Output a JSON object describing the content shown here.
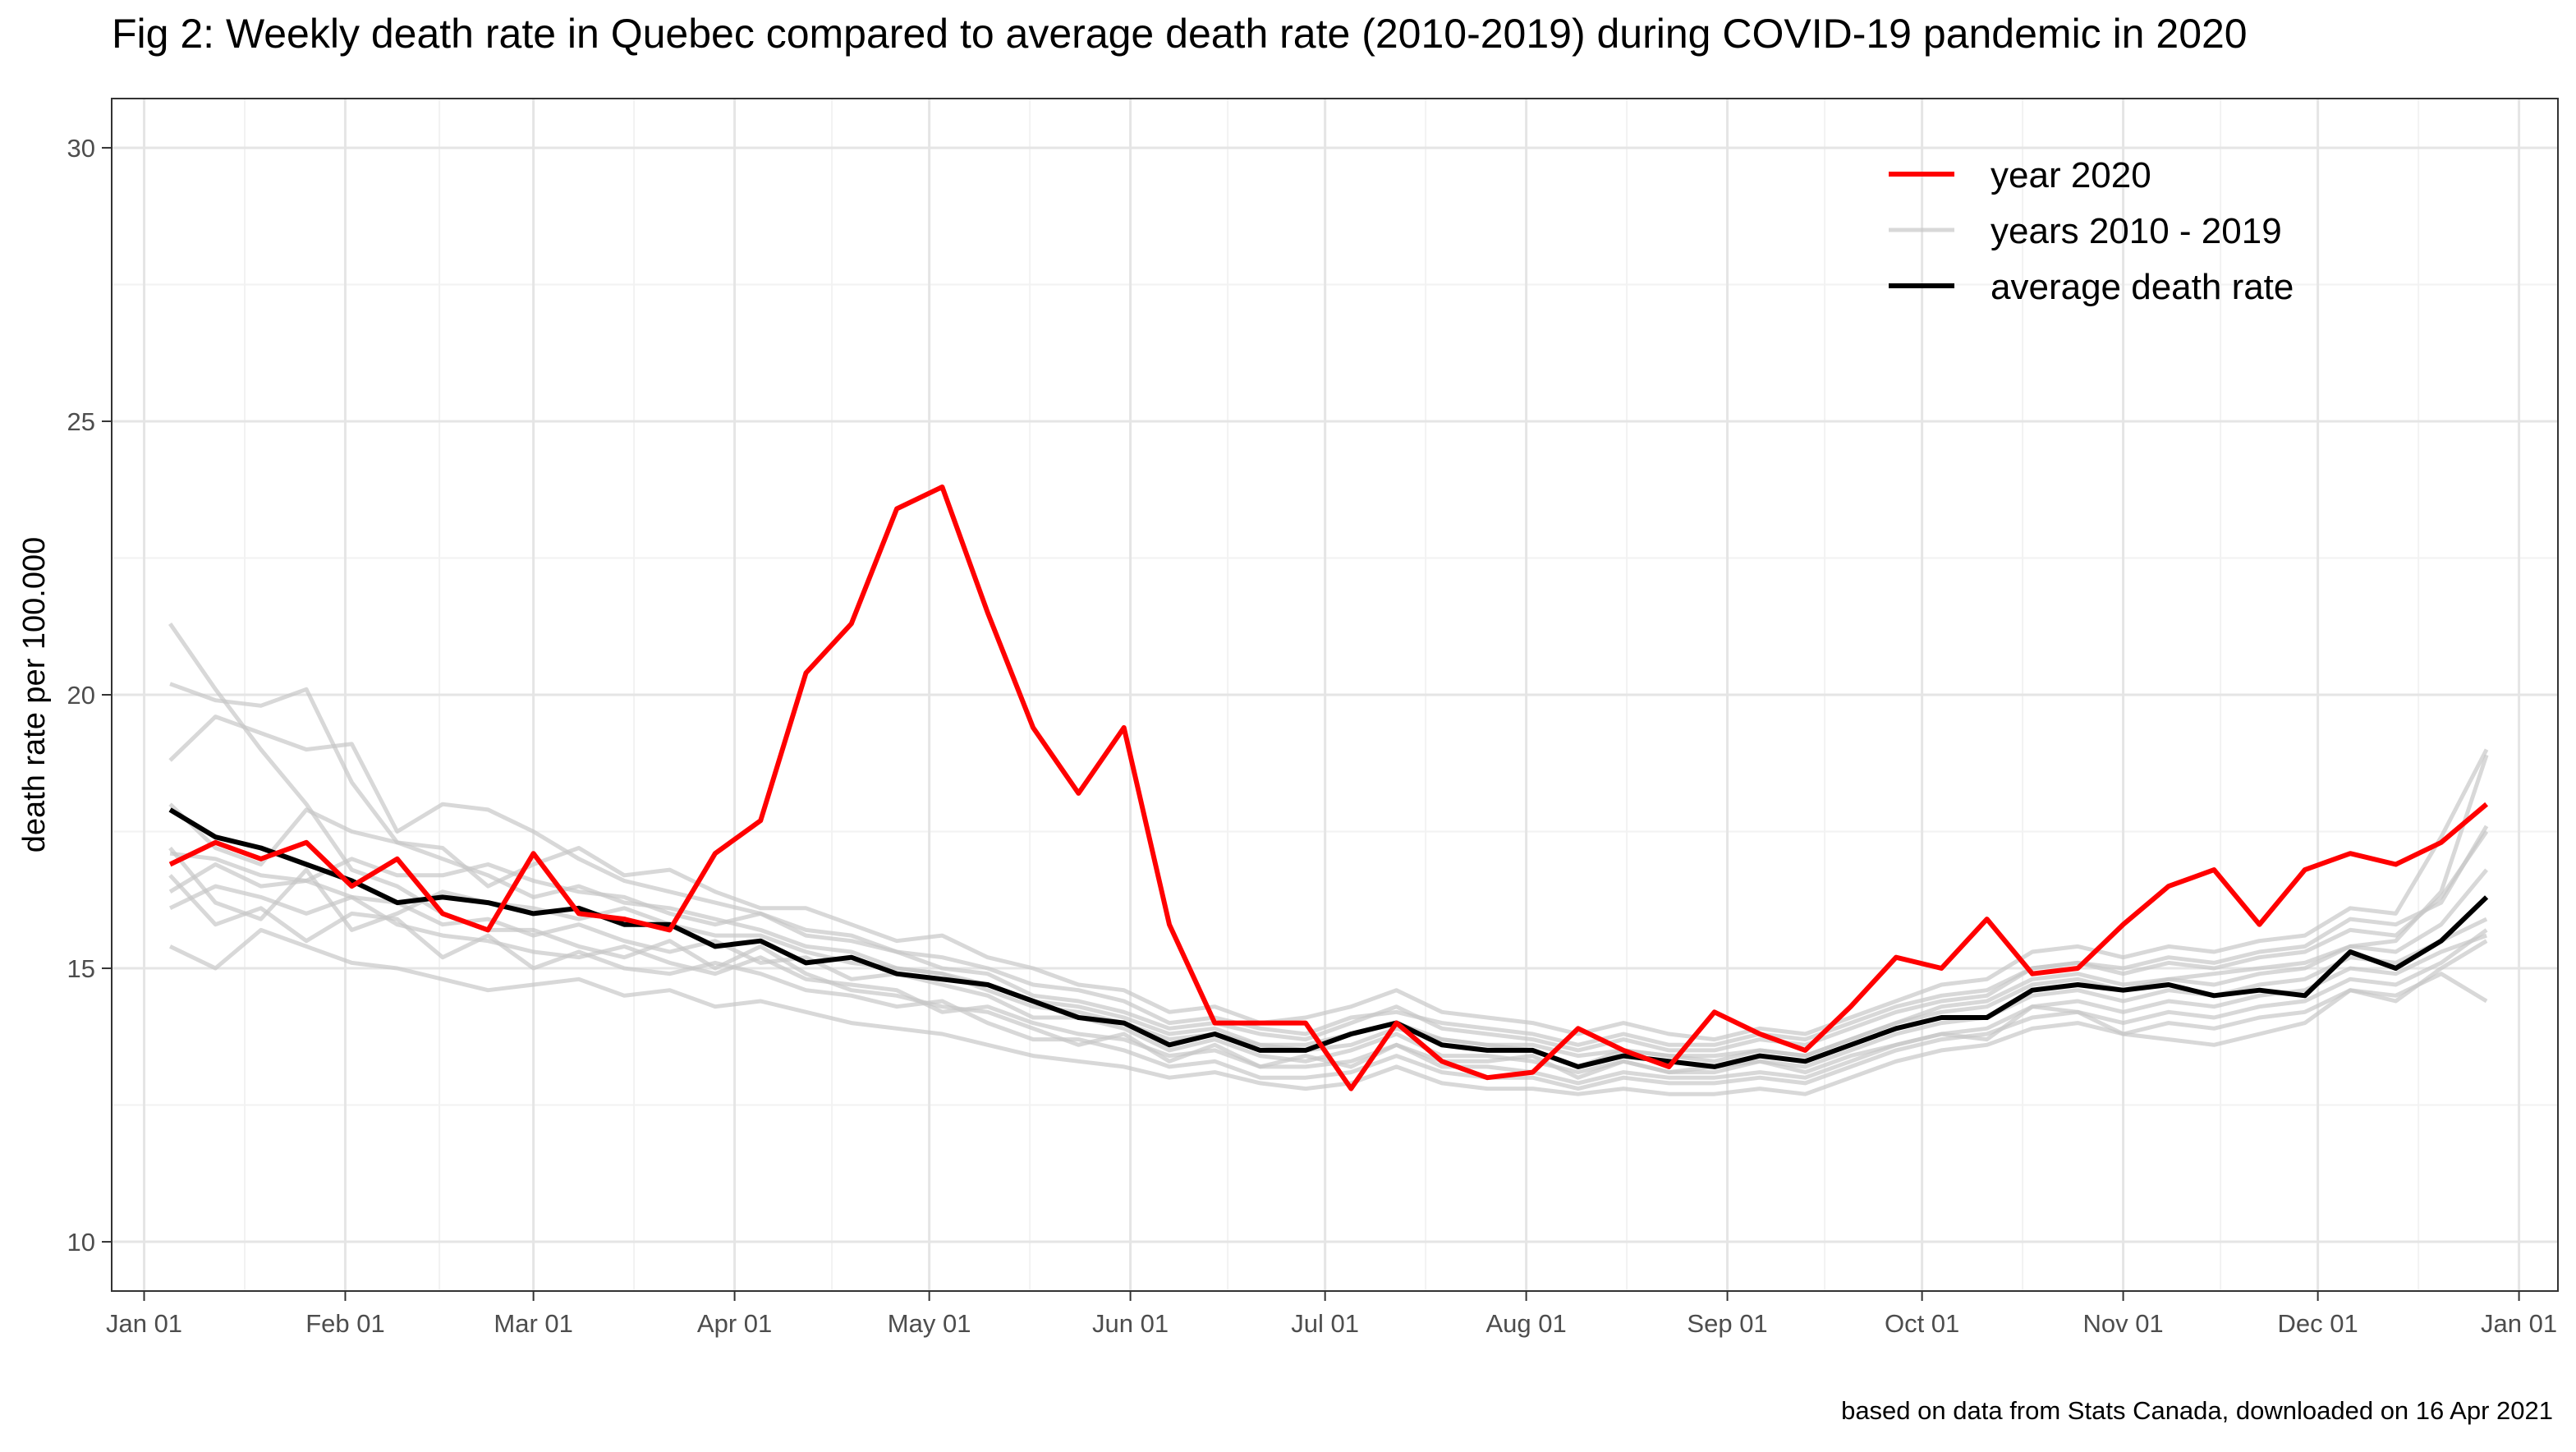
{
  "title": "Fig 2: Weekly death rate in Quebec compared to average death rate (2010-2019) during COVID-19 pandemic in 2020",
  "caption": "based on data from Stats Canada, downloaded on 16 Apr 2021",
  "colors": {
    "year_2020": "#ff0000",
    "years_2010_2019": "#c8c8c8",
    "average": "#000000",
    "grid_major": "#e5e5e5",
    "grid_minor": "#f2f2f2",
    "panel_border": "#333333",
    "tick_text": "#4d4d4d"
  },
  "chart_data": {
    "type": "line",
    "title": "Fig 2: Weekly death rate in Quebec compared to average death rate (2010-2019) during COVID-19 pandemic in 2020",
    "xlabel": "",
    "ylabel": "death rate per 100.000",
    "ylim": [
      9.1,
      30.9
    ],
    "xlim": [
      "2019-12-27",
      "2021-01-07"
    ],
    "grid": true,
    "legend_position": "top-right",
    "x_ticks": [
      {
        "date": "2020-01-01",
        "label": "Jan 01"
      },
      {
        "date": "2020-02-01",
        "label": "Feb 01"
      },
      {
        "date": "2020-03-01",
        "label": "Mar 01"
      },
      {
        "date": "2020-04-01",
        "label": "Apr 01"
      },
      {
        "date": "2020-05-01",
        "label": "May 01"
      },
      {
        "date": "2020-06-01",
        "label": "Jun 01"
      },
      {
        "date": "2020-07-01",
        "label": "Jul 01"
      },
      {
        "date": "2020-08-01",
        "label": "Aug 01"
      },
      {
        "date": "2020-09-01",
        "label": "Sep 01"
      },
      {
        "date": "2020-10-01",
        "label": "Oct 01"
      },
      {
        "date": "2020-11-01",
        "label": "Nov 01"
      },
      {
        "date": "2020-12-01",
        "label": "Dec 01"
      },
      {
        "date": "2021-01-01",
        "label": "Jan 01"
      }
    ],
    "y_ticks": [
      {
        "value": 10,
        "label": "10"
      },
      {
        "value": 15,
        "label": "15"
      },
      {
        "value": 20,
        "label": "20"
      },
      {
        "value": 25,
        "label": "25"
      },
      {
        "value": 30,
        "label": "30"
      }
    ],
    "x": [
      "2020-01-05",
      "2020-01-12",
      "2020-01-19",
      "2020-01-26",
      "2020-02-02",
      "2020-02-09",
      "2020-02-16",
      "2020-02-23",
      "2020-03-01",
      "2020-03-08",
      "2020-03-15",
      "2020-03-22",
      "2020-03-29",
      "2020-04-05",
      "2020-04-12",
      "2020-04-19",
      "2020-04-26",
      "2020-05-03",
      "2020-05-10",
      "2020-05-17",
      "2020-05-24",
      "2020-05-31",
      "2020-06-07",
      "2020-06-14",
      "2020-06-21",
      "2020-06-28",
      "2020-07-05",
      "2020-07-12",
      "2020-07-19",
      "2020-07-26",
      "2020-08-02",
      "2020-08-09",
      "2020-08-16",
      "2020-08-23",
      "2020-08-30",
      "2020-09-06",
      "2020-09-13",
      "2020-09-20",
      "2020-09-27",
      "2020-10-04",
      "2020-10-11",
      "2020-10-18",
      "2020-10-25",
      "2020-11-01",
      "2020-11-08",
      "2020-11-15",
      "2020-11-22",
      "2020-11-29",
      "2020-12-06",
      "2020-12-13",
      "2020-12-20",
      "2020-12-27"
    ],
    "legend": [
      {
        "label": "year 2020",
        "color": "#ff0000"
      },
      {
        "label": "years 2010 - 2019",
        "color": "#c8c8c8"
      },
      {
        "label": "average death rate",
        "color": "#000000"
      }
    ],
    "series": [
      {
        "name": "year 2020",
        "color": "#ff0000",
        "values": [
          16.9,
          17.3,
          17.0,
          17.3,
          16.5,
          17.0,
          16.0,
          15.7,
          17.1,
          16.0,
          15.9,
          15.7,
          17.1,
          17.7,
          20.4,
          21.3,
          23.4,
          23.8,
          21.5,
          19.4,
          18.2,
          19.4,
          15.8,
          14.0,
          14.0,
          14.0,
          12.8,
          14.0,
          13.3,
          13.0,
          13.1,
          13.9,
          13.5,
          13.2,
          14.2,
          13.8,
          13.5,
          14.3,
          15.2,
          15.0,
          15.9,
          14.9,
          15.0,
          15.8,
          16.5,
          16.8,
          15.8,
          16.8,
          17.1,
          16.9,
          17.3,
          18.0
        ]
      },
      {
        "name": "average death rate",
        "color": "#000000",
        "values": [
          17.9,
          17.4,
          17.2,
          16.9,
          16.6,
          16.2,
          16.3,
          16.2,
          16.0,
          16.1,
          15.8,
          15.8,
          15.4,
          15.5,
          15.1,
          15.2,
          14.9,
          14.8,
          14.7,
          14.4,
          14.1,
          14.0,
          13.6,
          13.8,
          13.5,
          13.5,
          13.8,
          14.0,
          13.6,
          13.5,
          13.5,
          13.2,
          13.4,
          13.3,
          13.2,
          13.4,
          13.3,
          13.6,
          13.9,
          14.1,
          14.1,
          14.6,
          14.7,
          14.6,
          14.7,
          14.5,
          14.6,
          14.5,
          15.3,
          15.0,
          15.5,
          16.3
        ]
      },
      {
        "name": "",
        "color": "#c8c8c8",
        "values": [
          21.3,
          20.1,
          19.0,
          18.0,
          16.8,
          16.5,
          16.0,
          15.7,
          15.7,
          15.4,
          15.2,
          15.5,
          15.0,
          15.4,
          14.9,
          14.6,
          14.5,
          14.3,
          14.2,
          13.9,
          13.6,
          13.8,
          13.3,
          13.6,
          13.2,
          13.4,
          13.2,
          13.6,
          13.3,
          13.3,
          13.4,
          13.0,
          13.3,
          13.1,
          13.2,
          13.3,
          13.1,
          13.4,
          13.6,
          13.8,
          13.7,
          14.3,
          14.2,
          13.8,
          13.7,
          13.6,
          13.8,
          14.0,
          14.6,
          14.4,
          15.0,
          15.5
        ]
      },
      {
        "name": "",
        "color": "#c8c8c8",
        "values": [
          20.2,
          19.9,
          19.8,
          20.1,
          18.4,
          17.3,
          17.0,
          16.7,
          16.3,
          16.5,
          16.2,
          16.1,
          15.9,
          15.7,
          15.4,
          15.3,
          15.0,
          14.9,
          14.6,
          14.3,
          14.2,
          14.0,
          13.7,
          13.8,
          13.6,
          13.5,
          13.6,
          13.9,
          13.7,
          13.6,
          13.5,
          13.2,
          13.5,
          13.4,
          13.3,
          13.5,
          13.4,
          13.7,
          14.0,
          14.3,
          14.4,
          14.8,
          14.9,
          14.7,
          14.8,
          14.9,
          15.0,
          15.1,
          15.4,
          15.5,
          16.4,
          18.9
        ]
      },
      {
        "name": "",
        "color": "#c8c8c8",
        "values": [
          18.8,
          19.6,
          19.3,
          19.0,
          19.1,
          17.5,
          18.0,
          17.9,
          17.5,
          17.0,
          16.6,
          16.4,
          16.2,
          16.0,
          15.6,
          15.5,
          15.3,
          15.0,
          14.9,
          14.5,
          14.4,
          14.2,
          13.9,
          14.0,
          13.8,
          13.7,
          14.0,
          14.3,
          13.9,
          13.8,
          13.7,
          13.5,
          13.7,
          13.5,
          13.5,
          13.7,
          13.6,
          13.9,
          14.2,
          14.4,
          14.5,
          15.0,
          15.1,
          15.0,
          15.2,
          15.1,
          15.3,
          15.4,
          15.9,
          15.8,
          16.2,
          17.6
        ]
      },
      {
        "name": "",
        "color": "#c8c8c8",
        "values": [
          18.0,
          17.2,
          16.9,
          17.9,
          17.5,
          17.3,
          17.2,
          16.5,
          16.9,
          17.2,
          16.7,
          16.8,
          16.4,
          16.1,
          16.1,
          15.8,
          15.5,
          15.6,
          15.2,
          15.0,
          14.7,
          14.6,
          14.2,
          14.3,
          14.0,
          14.1,
          14.3,
          14.6,
          14.2,
          14.1,
          14.0,
          13.8,
          14.0,
          13.8,
          13.7,
          13.9,
          13.8,
          14.1,
          14.4,
          14.7,
          14.8,
          15.3,
          15.4,
          15.2,
          15.4,
          15.3,
          15.5,
          15.6,
          16.1,
          16.0,
          17.4,
          19.0
        ]
      },
      {
        "name": "",
        "color": "#c8c8c8",
        "values": [
          17.1,
          17.0,
          16.7,
          16.6,
          17.0,
          16.7,
          16.7,
          16.9,
          16.6,
          16.4,
          16.3,
          16.0,
          15.8,
          16.0,
          15.7,
          15.6,
          15.3,
          15.2,
          15.0,
          14.7,
          14.6,
          14.4,
          14.0,
          14.1,
          13.9,
          13.8,
          14.1,
          14.2,
          14.0,
          13.9,
          13.8,
          13.6,
          13.8,
          13.6,
          13.6,
          13.8,
          13.7,
          14.0,
          14.3,
          14.5,
          14.6,
          15.0,
          15.1,
          14.9,
          15.1,
          15.0,
          15.2,
          15.3,
          15.7,
          15.6,
          16.3,
          17.5
        ]
      },
      {
        "name": "",
        "color": "#c8c8c8",
        "values": [
          16.4,
          16.9,
          16.5,
          16.6,
          16.3,
          16.2,
          15.8,
          15.9,
          15.6,
          15.8,
          15.5,
          15.3,
          15.5,
          15.1,
          15.2,
          14.8,
          14.9,
          14.7,
          14.5,
          14.1,
          14.1,
          13.9,
          13.5,
          13.7,
          13.4,
          13.3,
          13.5,
          13.8,
          13.4,
          13.4,
          13.3,
          13.1,
          13.3,
          13.1,
          13.1,
          13.3,
          13.2,
          13.5,
          13.8,
          14.0,
          14.1,
          14.5,
          14.6,
          14.4,
          14.6,
          14.5,
          14.7,
          14.8,
          15.2,
          15.1,
          15.5,
          15.9
        ]
      },
      {
        "name": "",
        "color": "#c8c8c8",
        "values": [
          16.1,
          16.5,
          16.3,
          16.0,
          16.3,
          15.8,
          15.6,
          15.5,
          15.3,
          15.2,
          15.4,
          15.1,
          14.9,
          15.2,
          14.8,
          14.7,
          14.6,
          14.2,
          14.3,
          14.0,
          13.8,
          13.7,
          13.4,
          13.5,
          13.2,
          13.2,
          13.3,
          13.6,
          13.2,
          13.2,
          13.1,
          12.9,
          13.1,
          13.0,
          13.0,
          13.1,
          13.0,
          13.3,
          13.6,
          13.8,
          13.9,
          14.3,
          14.4,
          14.2,
          14.4,
          14.3,
          14.5,
          14.6,
          15.0,
          14.9,
          15.3,
          15.6
        ]
      },
      {
        "name": "",
        "color": "#c8c8c8",
        "values": [
          15.4,
          15.0,
          15.7,
          15.4,
          15.1,
          15.0,
          14.8,
          14.6,
          14.7,
          14.8,
          14.5,
          14.6,
          14.3,
          14.4,
          14.2,
          14.0,
          13.9,
          13.8,
          13.6,
          13.4,
          13.3,
          13.2,
          13.0,
          13.1,
          12.9,
          12.8,
          12.9,
          13.2,
          12.9,
          12.8,
          12.8,
          12.7,
          12.8,
          12.7,
          12.7,
          12.8,
          12.7,
          13.0,
          13.3,
          13.5,
          13.6,
          13.9,
          14.0,
          13.8,
          14.0,
          13.9,
          14.1,
          14.2,
          14.6,
          14.5,
          14.9,
          14.4
        ]
      },
      {
        "name": "",
        "color": "#c8c8c8",
        "values": [
          16.7,
          15.8,
          16.1,
          15.5,
          16.0,
          15.9,
          15.2,
          15.6,
          15.0,
          15.3,
          15.0,
          14.9,
          15.1,
          14.9,
          14.6,
          14.5,
          14.3,
          14.4,
          14.0,
          13.7,
          13.7,
          13.5,
          13.2,
          13.3,
          13.0,
          13.0,
          13.1,
          13.4,
          13.1,
          13.0,
          13.0,
          12.8,
          13.0,
          12.9,
          12.9,
          13.0,
          12.9,
          13.2,
          13.5,
          13.7,
          13.8,
          14.1,
          14.2,
          14.0,
          14.2,
          14.1,
          14.3,
          14.4,
          14.8,
          14.7,
          15.1,
          15.7
        ]
      },
      {
        "name": "",
        "color": "#c8c8c8",
        "values": [
          17.2,
          16.2,
          15.9,
          16.8,
          15.7,
          16.0,
          16.4,
          16.2,
          16.1,
          15.9,
          16.1,
          15.8,
          15.6,
          15.6,
          15.3,
          15.1,
          15.0,
          14.9,
          14.7,
          14.4,
          14.3,
          14.1,
          13.8,
          13.9,
          13.6,
          13.6,
          13.8,
          14.0,
          13.7,
          13.6,
          13.6,
          13.4,
          13.5,
          13.4,
          13.4,
          13.5,
          13.4,
          13.7,
          14.0,
          14.2,
          14.3,
          14.7,
          14.8,
          14.6,
          14.8,
          14.7,
          14.9,
          15.0,
          15.4,
          15.3,
          15.8,
          16.8
        ]
      }
    ]
  }
}
